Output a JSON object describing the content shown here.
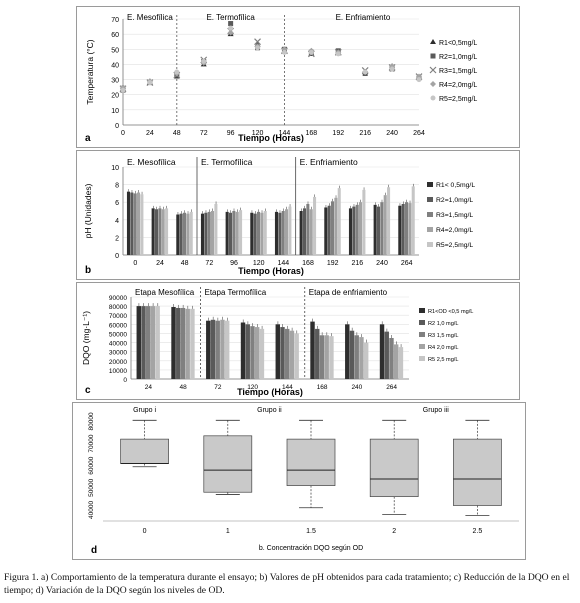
{
  "chart_data": [
    {
      "type": "scatter",
      "panel_letter": "a",
      "xlabel": "Tiempo (Horas)",
      "ylabel": "Temperatura (°C)",
      "x_ticks": [
        0,
        24,
        48,
        72,
        96,
        120,
        144,
        168,
        192,
        216,
        240,
        264
      ],
      "ylim": [
        0,
        70
      ],
      "y_ticks": [
        0,
        10,
        20,
        30,
        40,
        50,
        60,
        70
      ],
      "phases": [
        "E. Mesofílica",
        "E. Termofílica",
        "E. Enfriamiento"
      ],
      "phase_boundaries": [
        48,
        144
      ],
      "series": [
        {
          "name": "R1<0,5mg/L",
          "x": [
            0,
            24,
            48,
            72,
            96,
            120,
            144,
            168,
            192,
            216,
            240,
            264
          ],
          "y": [
            24,
            28,
            32,
            40,
            60,
            53,
            49,
            47,
            48,
            35,
            38,
            31
          ]
        },
        {
          "name": "R2=1,0mg/L",
          "x": [
            0,
            24,
            48,
            72,
            96,
            120,
            144,
            168,
            192,
            216,
            240,
            264
          ],
          "y": [
            23,
            28,
            33,
            42,
            67,
            51,
            50,
            48,
            49,
            34,
            37,
            31
          ]
        },
        {
          "name": "R3=1,5mg/L",
          "x": [
            0,
            24,
            48,
            72,
            96,
            120,
            144,
            168,
            192,
            216,
            240,
            264
          ],
          "y": [
            24,
            28,
            33,
            43,
            62,
            55,
            49,
            47,
            48,
            36,
            38,
            32
          ]
        },
        {
          "name": "R4=2,0mg/L",
          "x": [
            0,
            24,
            48,
            72,
            96,
            120,
            144,
            168,
            192,
            216,
            240,
            264
          ],
          "y": [
            25,
            29,
            34,
            41,
            61,
            52,
            50,
            49,
            48,
            35,
            39,
            32
          ]
        },
        {
          "name": "R5=2,5mg/L",
          "x": [
            0,
            24,
            48,
            72,
            96,
            120,
            144,
            168,
            192,
            216,
            240,
            264
          ],
          "y": [
            23,
            28,
            35,
            42,
            64,
            51,
            48,
            48,
            47,
            35,
            37,
            30
          ]
        }
      ]
    },
    {
      "type": "bar",
      "panel_letter": "b",
      "xlabel": "Tiempo (Horas)",
      "ylabel": "pH (Unidades)",
      "categories": [
        "0",
        "24",
        "48",
        "72",
        "96",
        "120",
        "144",
        "168",
        "192",
        "216",
        "240",
        "264"
      ],
      "ylim": [
        0,
        10
      ],
      "y_ticks": [
        0,
        2,
        4,
        6,
        8,
        10
      ],
      "phases": [
        "E. Mesofílica",
        "E. Termofílica",
        "E. Enfriamiento"
      ],
      "series": [
        {
          "name": "R1< 0,5mg/L",
          "values": [
            7.2,
            5.3,
            4.6,
            4.7,
            4.9,
            4.8,
            4.9,
            5.0,
            5.4,
            5.3,
            5.7,
            5.6
          ]
        },
        {
          "name": "R2=1,0mg/L",
          "values": [
            7.1,
            5.2,
            4.7,
            4.8,
            4.8,
            4.7,
            4.8,
            5.3,
            5.6,
            5.5,
            5.5,
            5.8
          ]
        },
        {
          "name": "R3=1,5mg/L",
          "values": [
            7.0,
            5.3,
            4.8,
            4.9,
            5.0,
            4.9,
            5.0,
            5.8,
            6.1,
            5.7,
            6.0,
            6.0
          ]
        },
        {
          "name": "R4=2,0mg/L",
          "values": [
            7.1,
            5.2,
            4.7,
            5.0,
            4.9,
            4.8,
            5.2,
            5.2,
            6.5,
            6.0,
            6.8,
            5.9
          ]
        },
        {
          "name": "R5=2,5mg/L",
          "values": [
            6.9,
            5.3,
            4.9,
            5.8,
            5.1,
            5.0,
            5.5,
            6.6,
            7.6,
            7.4,
            7.7,
            7.8
          ]
        }
      ]
    },
    {
      "type": "bar",
      "panel_letter": "c",
      "xlabel": "Tiempo (Horas)",
      "ylabel": "DQO (mg·L⁻¹)",
      "categories": [
        "24",
        "48",
        "72",
        "120",
        "144",
        "168",
        "240",
        "264"
      ],
      "ylim": [
        0,
        90000
      ],
      "y_ticks": [
        "0",
        "10000",
        "20000",
        "30000",
        "40000",
        "50000",
        "60000",
        "70000",
        "80000",
        "90000"
      ],
      "phases": [
        "Etapa Mesofílica",
        "Etapa Termofílica",
        "Etapa de enfriamiento"
      ],
      "series": [
        {
          "name": "R1<OD <0,5 mg/L",
          "values": [
            80000,
            79000,
            64000,
            62000,
            60000,
            63000,
            60000,
            60000
          ]
        },
        {
          "name": "R2 1,0 mg/L",
          "values": [
            80000,
            78000,
            65000,
            60000,
            57000,
            55000,
            53000,
            52000
          ]
        },
        {
          "name": "R3 1,5 mg/L",
          "values": [
            80000,
            78000,
            64000,
            58000,
            55000,
            48000,
            48000,
            45000
          ]
        },
        {
          "name": "R4 2,0 mg/L",
          "values": [
            80000,
            77000,
            65000,
            57000,
            53000,
            48000,
            46000,
            38000
          ]
        },
        {
          "name": "R5 2,5 mg/L",
          "values": [
            80000,
            77000,
            64000,
            55000,
            50000,
            47000,
            40000,
            35000
          ]
        }
      ]
    },
    {
      "type": "box",
      "panel_letter": "d",
      "xlabel": "b.   Concentración DQO según OD",
      "categories": [
        "0",
        "1",
        "1.5",
        "2",
        "2.5"
      ],
      "ylim": [
        40000,
        80000
      ],
      "y_ticks": [
        "40000",
        "50000",
        "60000",
        "70000",
        "80000"
      ],
      "groups": [
        {
          "label": "Grupo i",
          "members": [
            "0"
          ]
        },
        {
          "label": "Grupo ii",
          "members": [
            "1",
            "1.5"
          ]
        },
        {
          "label": "Grupo iii",
          "members": [
            "2",
            "2.5"
          ]
        }
      ],
      "boxes": [
        {
          "category": "0",
          "min": 59500,
          "q1": 61000,
          "median": 61000,
          "q3": 72000,
          "max": 80500
        },
        {
          "category": "1",
          "min": 47000,
          "q1": 48000,
          "median": 58000,
          "q3": 73500,
          "max": 80500
        },
        {
          "category": "1.5",
          "min": 41000,
          "q1": 51000,
          "median": 58000,
          "q3": 72000,
          "max": 80500
        },
        {
          "category": "2",
          "min": 38000,
          "q1": 46000,
          "median": 54000,
          "q3": 72000,
          "max": 80500
        },
        {
          "category": "2.5",
          "min": 37500,
          "q1": 42000,
          "median": 54000,
          "q3": 72000,
          "max": 80500
        }
      ]
    }
  ],
  "caption": "Figura 1. a) Comportamiento de la temperatura durante el ensayo; b) Valores de pH obtenidos para cada tratamiento; c) Reducción de la DQO en el tiempo; d) Variación de la DQO según los niveles de OD."
}
